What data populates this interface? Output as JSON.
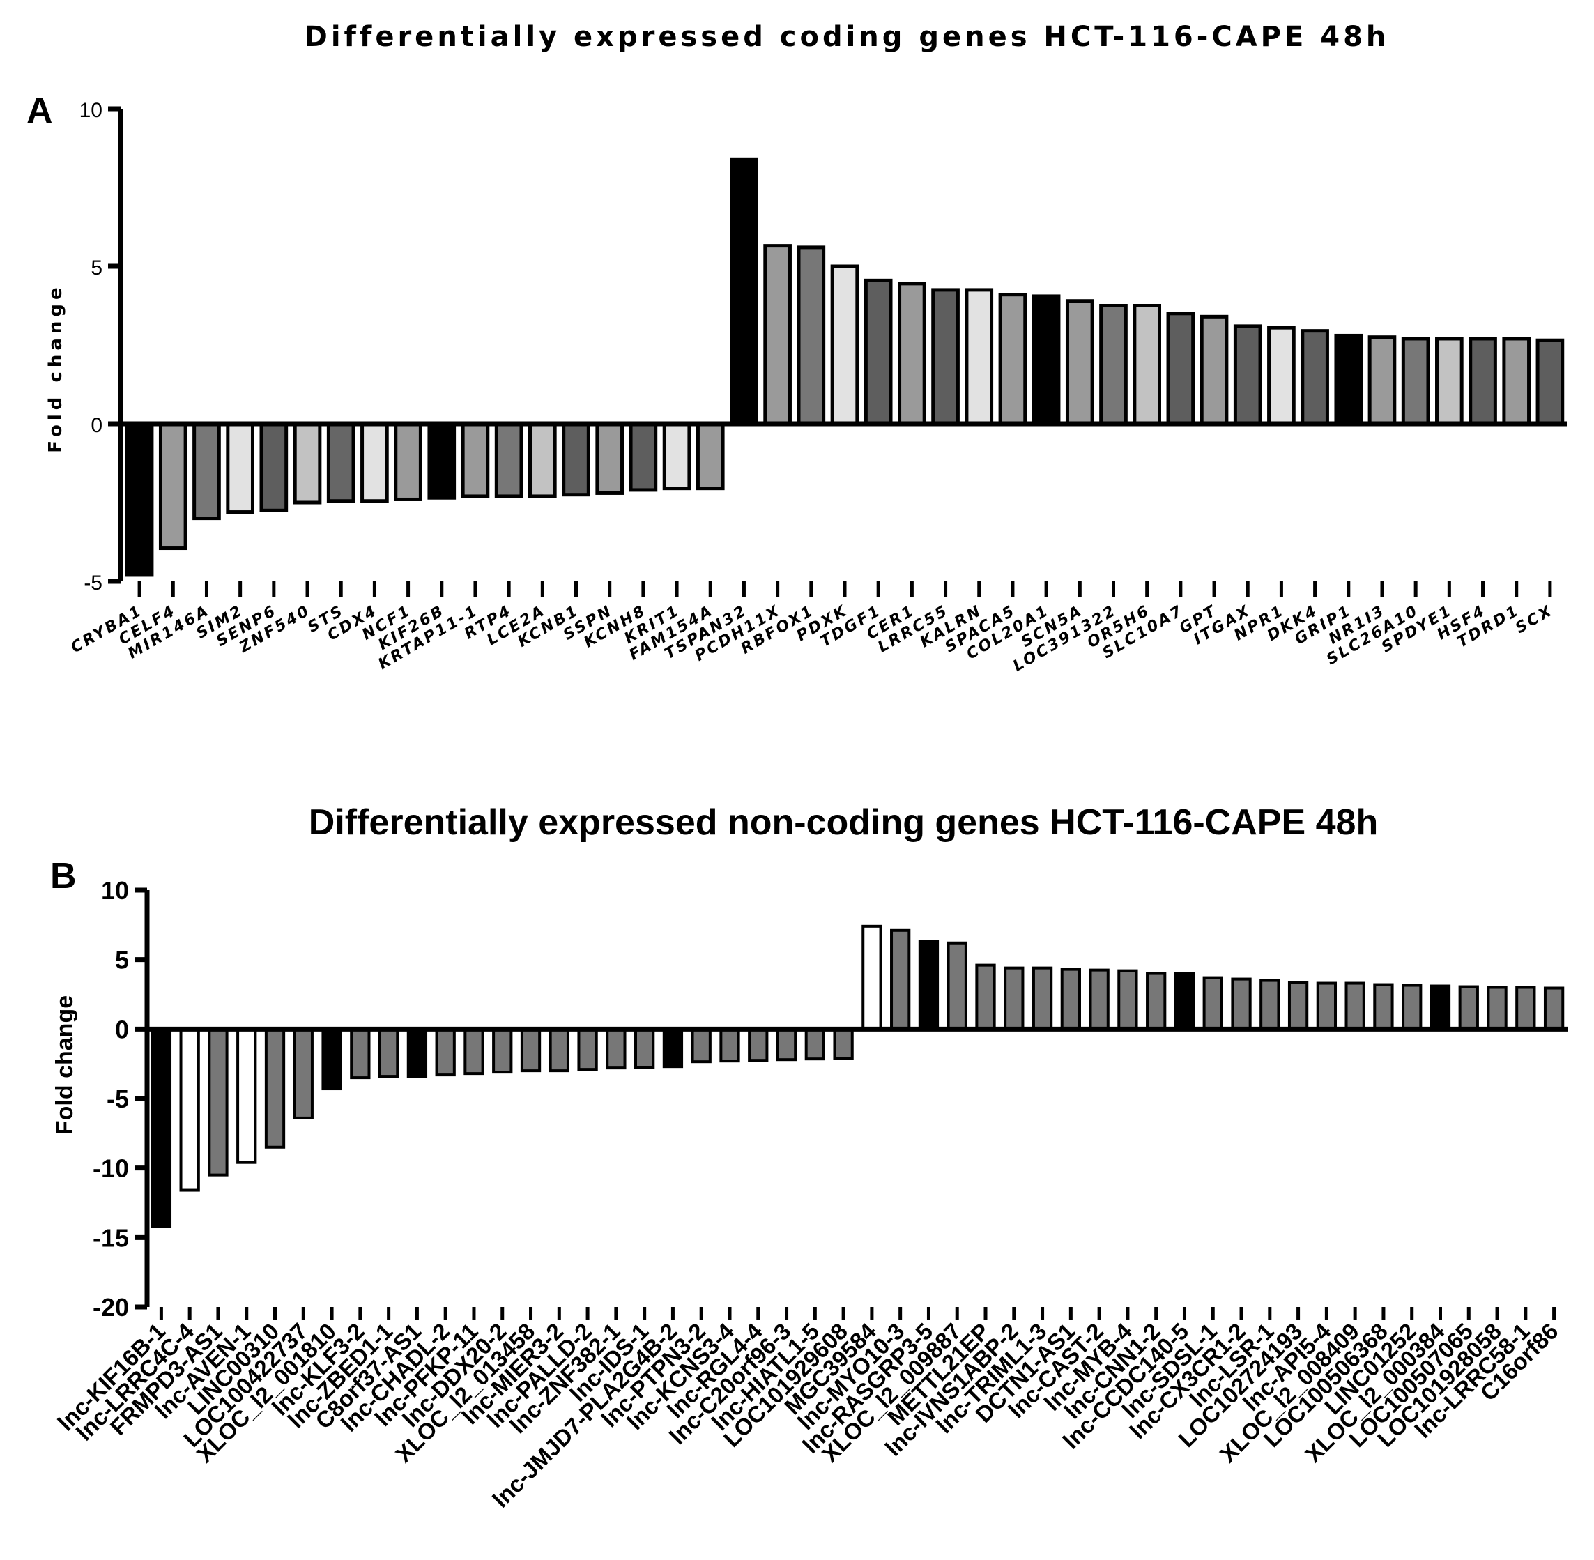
{
  "chart_data": [
    {
      "panel": "A",
      "type": "bar",
      "title": "Differentially expressed coding genes  HCT-116-CAPE 48h",
      "ylabel": "Fold change",
      "xlabel": "",
      "ylim": [
        -5,
        10
      ],
      "yticks": [
        -5,
        0,
        5,
        10
      ],
      "categories": [
        "CRYBA1",
        "CELF4",
        "MIR146A",
        "SIM2",
        "SENP6",
        "ZNF540",
        "STS",
        "CDX4",
        "NCF1",
        "KIF26B",
        "KRTAP11-1",
        "RTP4",
        "LCE2A",
        "KCNB1",
        "SSPN",
        "KCNH8",
        "KRIT1",
        "FAM154A",
        "TSPAN32",
        "PCDH11X",
        "RBFOX1",
        "PDXK",
        "TDGF1",
        "CER1",
        "LRRC55",
        "KALRN",
        "SPACA5",
        "COL20A1",
        "SCN5A",
        "LOC391322",
        "OR5H6",
        "SLC10A7",
        "GPT",
        "ITGAX",
        "NPR1",
        "DKK4",
        "GRIP1",
        "NR1I3",
        "SLC26A10",
        "SPDYE1",
        "HSF4",
        "TDRD1",
        "SCX"
      ],
      "values": [
        -4.8,
        -3.95,
        -3.0,
        -2.8,
        -2.75,
        -2.5,
        -2.45,
        -2.45,
        -2.4,
        -2.35,
        -2.3,
        -2.3,
        -2.3,
        -2.25,
        -2.2,
        -2.1,
        -2.05,
        -2.05,
        8.4,
        5.65,
        5.6,
        5.0,
        4.55,
        4.45,
        4.25,
        4.25,
        4.1,
        4.05,
        3.9,
        3.75,
        3.75,
        3.5,
        3.4,
        3.1,
        3.05,
        2.95,
        2.8,
        2.75,
        2.7,
        2.7,
        2.7,
        2.7,
        2.65
      ],
      "fills": [
        "#000000",
        "#9a9a9a",
        "#777777",
        "#e2e2e2",
        "#5e5e5e",
        "#c2c2c2",
        "#666666",
        "#e2e2e2",
        "#9a9a9a",
        "#000000",
        "#9a9a9a",
        "#777777",
        "#c2c2c2",
        "#5e5e5e",
        "#9a9a9a",
        "#5e5e5e",
        "#e2e2e2",
        "#9a9a9a",
        "#000000",
        "#9a9a9a",
        "#777777",
        "#e2e2e2",
        "#5e5e5e",
        "#9a9a9a",
        "#5e5e5e",
        "#e2e2e2",
        "#9a9a9a",
        "#000000",
        "#9a9a9a",
        "#777777",
        "#c2c2c2",
        "#5e5e5e",
        "#9a9a9a",
        "#5e5e5e",
        "#e2e2e2",
        "#5e5e5e",
        "#000000",
        "#9a9a9a",
        "#777777",
        "#c2c2c2",
        "#5e5e5e",
        "#9a9a9a",
        "#5e5e5e"
      ]
    },
    {
      "panel": "B",
      "type": "bar",
      "title": "Differentially expressed non-coding genes  HCT-116-CAPE 48h",
      "ylabel": "Fold change",
      "xlabel": "",
      "ylim": [
        -20,
        10
      ],
      "yticks": [
        -20,
        -15,
        -10,
        -5,
        0,
        5,
        10
      ],
      "categories": [
        "lnc-KIF16B-1",
        "lnc-LRRC4C-4",
        "FRMPD3-AS1",
        "lnc-AVEN-1",
        "LINC00310",
        "LOC100422737",
        "XLOC_l2_001810",
        "lnc-KLF3-2",
        "lnc-ZBED1-1",
        "C8orf37-AS1",
        "lnc-CHADL-2",
        "lnc-PFKP-11",
        "lnc-DDX20-2",
        "XLOC_l2_013458",
        "lnc-MIER3-2",
        "lnc-PALLD-2",
        "lnc-ZNF382-1",
        "lnc-IDS-1",
        "lnc-JMJD7-PLA2G4B-2",
        "lnc-PTPN3-2",
        "lnc-KCNS3-4",
        "lnc-RGL4-4",
        "lnc-C20orf96-3",
        "lnc-HIATL1-5",
        "LOC101929608",
        "MGC39584",
        "lnc-MYO10-3",
        "lnc-RASGRP3-5",
        "XLOC_l2_009887",
        "METTL21EP",
        "lnc-IVNS1ABP-2",
        "lnc-TRIML1-3",
        "DCTN1-AS1",
        "lnc-CAST-2",
        "lnc-MYB-4",
        "lnc-CNN1-2",
        "lnc-CCDC140-5",
        "lnc-SDSL-1",
        "lnc-CX3CR1-2",
        "lnc-LSR-1",
        "LOC102724193",
        "lnc-API5-4",
        "XLOC_l2_008409",
        "LOC100506368",
        "LINC01252",
        "XLOC_l2_000384",
        "LOC100507065",
        "LOC101928058",
        "lnc-LRRC58-1",
        "C16orf86"
      ],
      "values": [
        -14.2,
        -11.6,
        -10.5,
        -9.6,
        -8.5,
        -6.4,
        -4.3,
        -3.5,
        -3.4,
        -3.4,
        -3.3,
        -3.2,
        -3.1,
        -3.0,
        -3.0,
        -2.9,
        -2.8,
        -2.75,
        -2.7,
        -2.35,
        -2.3,
        -2.25,
        -2.2,
        -2.15,
        -2.1,
        7.4,
        7.1,
        6.3,
        6.2,
        4.6,
        4.4,
        4.4,
        4.3,
        4.25,
        4.2,
        4.0,
        4.0,
        3.7,
        3.6,
        3.5,
        3.35,
        3.3,
        3.3,
        3.2,
        3.15,
        3.1,
        3.05,
        3.0,
        3.0,
        2.95
      ],
      "fills": [
        "#000000",
        "#ffffff",
        "#777777",
        "#ffffff",
        "#777777",
        "#777777",
        "#000000",
        "#777777",
        "#777777",
        "#000000",
        "#777777",
        "#777777",
        "#777777",
        "#777777",
        "#777777",
        "#777777",
        "#777777",
        "#777777",
        "#000000",
        "#777777",
        "#777777",
        "#777777",
        "#777777",
        "#777777",
        "#777777",
        "#ffffff",
        "#777777",
        "#000000",
        "#777777",
        "#777777",
        "#777777",
        "#777777",
        "#777777",
        "#777777",
        "#777777",
        "#777777",
        "#000000",
        "#777777",
        "#777777",
        "#777777",
        "#777777",
        "#777777",
        "#777777",
        "#777777",
        "#777777",
        "#000000",
        "#777777",
        "#777777",
        "#777777",
        "#777777"
      ]
    }
  ]
}
